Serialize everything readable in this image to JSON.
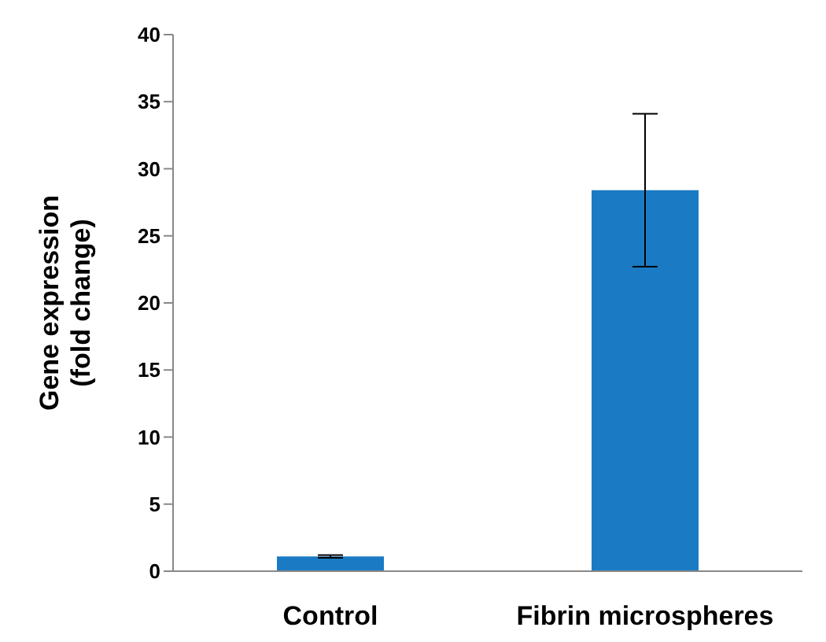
{
  "chart_data": {
    "type": "bar",
    "ylabel": "Gene expression (fold change)",
    "categories": [
      "Control",
      "Fibrin microspheres"
    ],
    "values": [
      1.1,
      28.4
    ],
    "errors": [
      0.1,
      5.7
    ],
    "color": "#1a7bc4",
    "ylim": [
      0,
      40
    ],
    "yticks": [
      0,
      5,
      10,
      15,
      20,
      25,
      30,
      35,
      40
    ],
    "grid": false,
    "legend": false
  }
}
